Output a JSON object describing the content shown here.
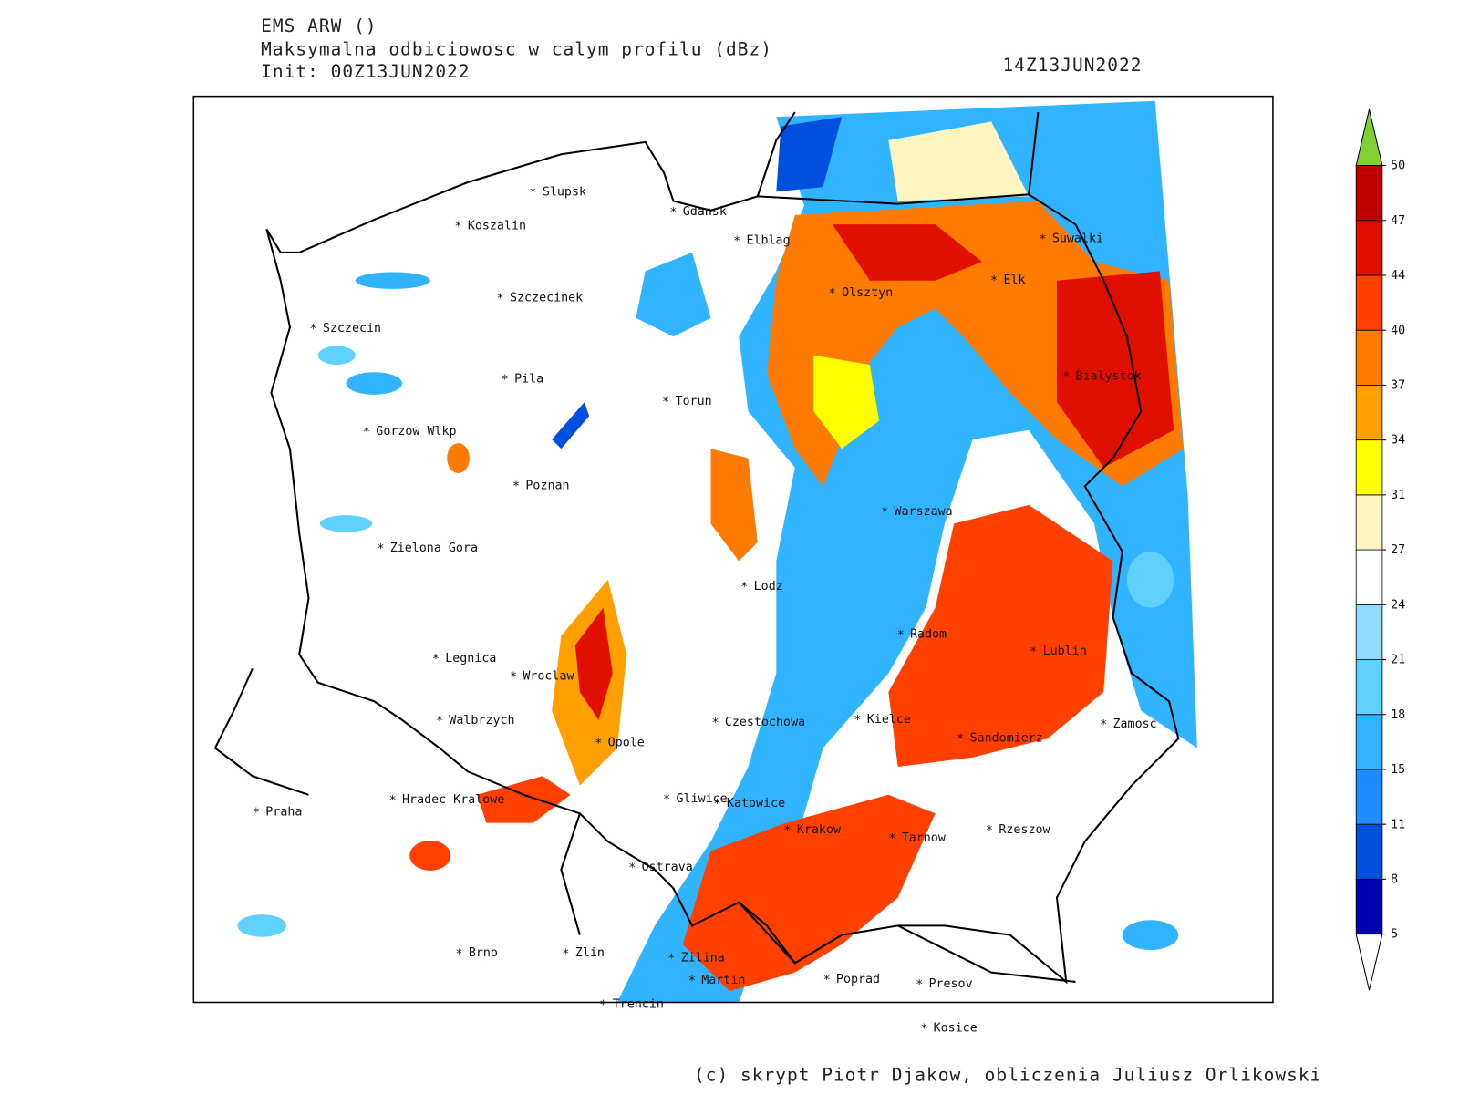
{
  "header": {
    "model": "EMS ARW ()",
    "title": "Maksymalna odbiciowosc w calym profilu (dBz)",
    "init": "Init: 00Z13JUN2022",
    "valid": "14Z13JUN2022"
  },
  "cities": [
    "Slupsk",
    "Koszalin",
    "Gdansk",
    "Elblag",
    "Szczecinek",
    "Szczecin",
    "Pila",
    "Torun",
    "Gorzow Wlkp",
    "Olsztyn",
    "Elk",
    "Suwalki",
    "Bialystok",
    "Poznan",
    "Zielona Gora",
    "Warszawa",
    "Lodz",
    "Radom",
    "Lublin",
    "Legnica",
    "Wroclaw",
    "Walbrzych",
    "Czestochowa",
    "Kielce",
    "Zamosc",
    "Opole",
    "Sandomierz",
    "Praha",
    "Hradec Kralowe",
    "Gliwice",
    "Katowice",
    "Krakow",
    "Tarnow",
    "Rzeszow",
    "Ostrava",
    "Brno",
    "Zlin",
    "Zilina",
    "Martin",
    "Poprad",
    "Presov",
    "Trencin",
    "Kosice"
  ],
  "colorbar": {
    "levels": [
      5,
      8,
      11,
      15,
      18,
      21,
      24,
      27,
      31,
      34,
      37,
      40,
      44,
      47,
      50
    ],
    "colors": [
      "#0000b4",
      "#0050e0",
      "#1e8cff",
      "#30b4ff",
      "#60d0ff",
      "#90dcff",
      "#ffffff",
      "#fff5c0",
      "#ffff00",
      "#ff9f00",
      "#ff7a00",
      "#ff4000",
      "#e01000",
      "#c00000"
    ],
    "over_color": "#7fd030",
    "under_color": "#ffffff"
  },
  "footer": "(c) skrypt Piotr Djakow, obliczenia Juliusz Orlikowski"
}
